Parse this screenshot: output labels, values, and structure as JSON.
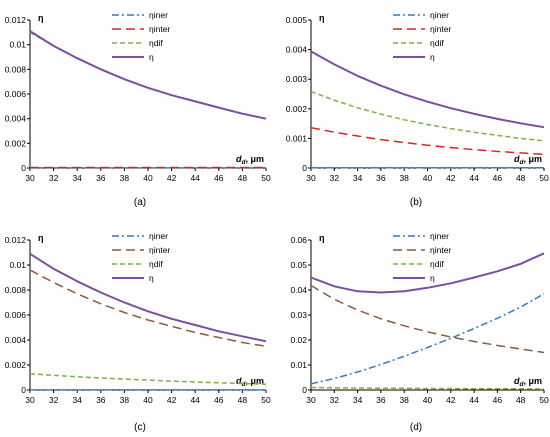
{
  "panel_order": [
    "a",
    "b",
    "c",
    "d"
  ],
  "styles": {
    "ηiner": {
      "color": "#2f7fc1",
      "dash": "7,3,2,3",
      "width": 1.5
    },
    "ηinter": {
      "color": "#d62728",
      "dash": "9,5",
      "width": 1.5
    },
    "ηdif": {
      "color": "#7cb342",
      "dash": "5,3",
      "width": 1.5
    },
    "η": {
      "color": "#7b4fa0",
      "dash": "",
      "width": 2
    },
    "ηinter_brown": {
      "color": "#8c5a3c",
      "dash": "9,5",
      "width": 1.5
    }
  },
  "chart_data": [
    {
      "type": "line",
      "caption": "(a)",
      "ylabel": "η",
      "xlabel_main": "d",
      "xlabel_sub": "d",
      "xlabel_unit": "μm",
      "xlim": [
        30,
        50
      ],
      "ylim": [
        0,
        0.012
      ],
      "x_ticks": [
        "30",
        "32",
        "34",
        "36",
        "38",
        "40",
        "42",
        "44",
        "46",
        "48",
        "50"
      ],
      "y_ticks": [
        "0",
        "0.002",
        "0.004",
        "0.006",
        "0.008",
        "0.01",
        "0.012"
      ],
      "x": [
        30,
        32,
        34,
        36,
        38,
        40,
        42,
        44,
        46,
        48,
        50
      ],
      "legend": [
        "ηiner",
        "ηinter",
        "ηdif",
        "η"
      ],
      "series": [
        {
          "name": "ηiner",
          "style": "ηiner",
          "values": [
            1e-05,
            1e-05,
            1e-05,
            1e-05,
            1e-05,
            1e-05,
            1e-05,
            1e-05,
            1e-05,
            1e-05,
            1e-05
          ]
        },
        {
          "name": "ηinter",
          "style": "ηinter",
          "values": [
            4e-05,
            4e-05,
            4e-05,
            4e-05,
            4e-05,
            4e-05,
            4e-05,
            4e-05,
            4e-05,
            4e-05,
            4e-05
          ]
        },
        {
          "name": "ηdif",
          "style": "ηdif",
          "values": [
            0.011,
            0.0099,
            0.0089,
            0.008,
            0.0072,
            0.0065,
            0.0059,
            0.0054,
            0.0049,
            0.0044,
            0.004
          ]
        },
        {
          "name": "η",
          "style": "η",
          "values": [
            0.0111,
            0.0099,
            0.0089,
            0.008,
            0.0072,
            0.0065,
            0.0059,
            0.0054,
            0.0049,
            0.0044,
            0.004
          ]
        }
      ]
    },
    {
      "type": "line",
      "caption": "(b)",
      "ylabel": "η",
      "xlabel_main": "d",
      "xlabel_sub": "d",
      "xlabel_unit": "μm",
      "xlim": [
        30,
        50
      ],
      "ylim": [
        0,
        0.005
      ],
      "x_ticks": [
        "30",
        "32",
        "34",
        "36",
        "38",
        "40",
        "42",
        "44",
        "46",
        "48",
        "50"
      ],
      "y_ticks": [
        "0",
        "0.001",
        "0.002",
        "0.003",
        "0.004",
        "0.005"
      ],
      "x": [
        30,
        32,
        34,
        36,
        38,
        40,
        42,
        44,
        46,
        48,
        50
      ],
      "legend": [
        "ηiner",
        "ηinter",
        "ηdif",
        "η"
      ],
      "series": [
        {
          "name": "ηiner",
          "style": "ηiner",
          "values": [
            1e-05,
            1e-05,
            1e-05,
            1e-05,
            1e-05,
            1e-05,
            1e-05,
            1e-05,
            1e-05,
            1e-05,
            1e-05
          ]
        },
        {
          "name": "ηinter",
          "style": "ηinter",
          "values": [
            0.00136,
            0.00121,
            0.00108,
            0.00096,
            0.00086,
            0.00077,
            0.00069,
            0.00062,
            0.00056,
            0.00051,
            0.00046
          ]
        },
        {
          "name": "ηdif",
          "style": "ηdif",
          "values": [
            0.00258,
            0.00229,
            0.00203,
            0.00182,
            0.00163,
            0.00147,
            0.00133,
            0.00121,
            0.0011,
            0.001,
            0.00092
          ]
        },
        {
          "name": "η",
          "style": "η",
          "values": [
            0.00394,
            0.0035,
            0.00311,
            0.00278,
            0.00249,
            0.00224,
            0.00202,
            0.00183,
            0.00166,
            0.00151,
            0.00138
          ]
        }
      ]
    },
    {
      "type": "line",
      "caption": "(c)",
      "ylabel": "η",
      "xlabel_main": "d",
      "xlabel_sub": "d",
      "xlabel_unit": "μm",
      "xlim": [
        30,
        50
      ],
      "ylim": [
        0,
        0.012
      ],
      "x_ticks": [
        "30",
        "32",
        "34",
        "36",
        "38",
        "40",
        "42",
        "44",
        "46",
        "48",
        "50"
      ],
      "y_ticks": [
        "0",
        "0.002",
        "0.004",
        "0.006",
        "0.008",
        "0.01",
        "0.012"
      ],
      "x": [
        30,
        32,
        34,
        36,
        38,
        40,
        42,
        44,
        46,
        48,
        50
      ],
      "legend": [
        "ηiner",
        "ηinter",
        "ηdif",
        "η"
      ],
      "series": [
        {
          "name": "ηiner",
          "style": "ηiner",
          "values": [
            1e-05,
            1e-05,
            1e-05,
            1e-05,
            1e-05,
            1e-05,
            1e-05,
            1e-05,
            1e-05,
            1e-05,
            1e-05
          ]
        },
        {
          "name": "ηinter",
          "style": "ηinter_brown",
          "values": [
            0.0096,
            0.0086,
            0.0077,
            0.0069,
            0.0062,
            0.0056,
            0.0051,
            0.0046,
            0.0042,
            0.0038,
            0.0035
          ]
        },
        {
          "name": "ηdif",
          "style": "ηdif",
          "values": [
            0.0013,
            0.00118,
            0.00106,
            0.00096,
            0.00087,
            0.00079,
            0.00071,
            0.00064,
            0.00058,
            0.00052,
            0.00046
          ]
        },
        {
          "name": "η",
          "style": "η",
          "values": [
            0.0109,
            0.0097,
            0.0087,
            0.0078,
            0.007,
            0.0063,
            0.0057,
            0.0052,
            0.0047,
            0.0043,
            0.0039
          ]
        }
      ]
    },
    {
      "type": "line",
      "caption": "(d)",
      "ylabel": "η",
      "xlabel_main": "d",
      "xlabel_sub": "d",
      "xlabel_unit": "μm",
      "xlim": [
        30,
        50
      ],
      "ylim": [
        0,
        0.06
      ],
      "x_ticks": [
        "30",
        "32",
        "34",
        "36",
        "38",
        "40",
        "42",
        "44",
        "46",
        "48",
        "50"
      ],
      "y_ticks": [
        "0",
        "0.01",
        "0.02",
        "0.03",
        "0.04",
        "0.05",
        "0.06"
      ],
      "x": [
        30,
        32,
        34,
        36,
        38,
        40,
        42,
        44,
        46,
        48,
        50
      ],
      "legend": [
        "ηiner",
        "ηinter",
        "ηdif",
        "η"
      ],
      "series": [
        {
          "name": "ηiner",
          "style": "ηiner",
          "values": [
            0.0025,
            0.0046,
            0.0072,
            0.0102,
            0.0135,
            0.017,
            0.0207,
            0.0246,
            0.0287,
            0.0332,
            0.0385
          ]
        },
        {
          "name": "ηinter",
          "style": "ηinter_brown",
          "values": [
            0.0418,
            0.0363,
            0.032,
            0.0285,
            0.0257,
            0.0233,
            0.0212,
            0.0194,
            0.0178,
            0.0164,
            0.015
          ]
        },
        {
          "name": "ηdif",
          "style": "ηdif",
          "values": [
            0.001,
            0.0009,
            0.0008,
            0.0007,
            0.0007,
            0.0006,
            0.0006,
            0.0005,
            0.0005,
            0.0005,
            0.0004
          ]
        },
        {
          "name": "η",
          "style": "η",
          "values": [
            0.045,
            0.0415,
            0.0395,
            0.039,
            0.0395,
            0.0409,
            0.0427,
            0.045,
            0.0475,
            0.0505,
            0.0547
          ]
        }
      ]
    }
  ]
}
